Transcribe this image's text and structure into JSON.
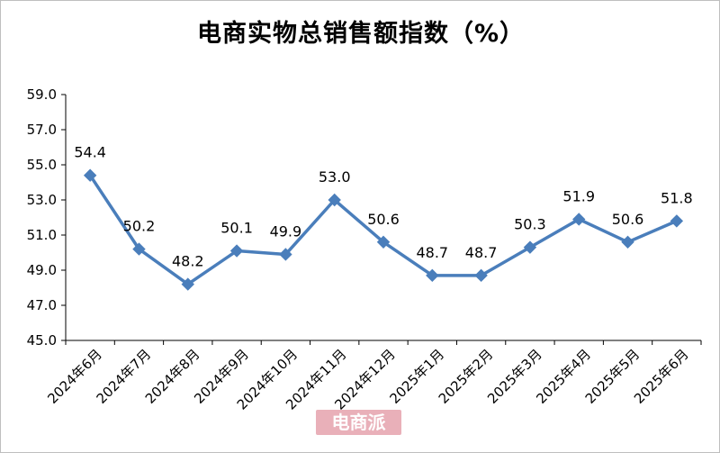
{
  "chart_data": {
    "type": "line",
    "title": "电商实物总销售额指数（%）",
    "categories": [
      "2024年6月",
      "2024年7月",
      "2024年8月",
      "2024年9月",
      "2024年10月",
      "2024年11月",
      "2024年12月",
      "2025年1月",
      "2025年2月",
      "2025年3月",
      "2025年4月",
      "2025年5月",
      "2025年6月"
    ],
    "values": [
      54.4,
      50.2,
      48.2,
      50.1,
      49.9,
      53.0,
      50.6,
      48.7,
      48.7,
      50.3,
      51.9,
      50.6,
      51.8
    ],
    "data_labels": [
      "54.4",
      "50.2",
      "48.2",
      "50.1",
      "49.9",
      "53.0",
      "50.6",
      "48.7",
      "48.7",
      "50.3",
      "51.9",
      "50.6",
      "51.8"
    ],
    "y_ticks": [
      "45.0",
      "47.0",
      "49.0",
      "51.0",
      "53.0",
      "55.0",
      "57.0",
      "59.0"
    ],
    "ylim": [
      45,
      59
    ],
    "grid": false,
    "line_color": "#4a7ebb",
    "marker": "diamond"
  },
  "watermark": {
    "text": "电商派"
  }
}
